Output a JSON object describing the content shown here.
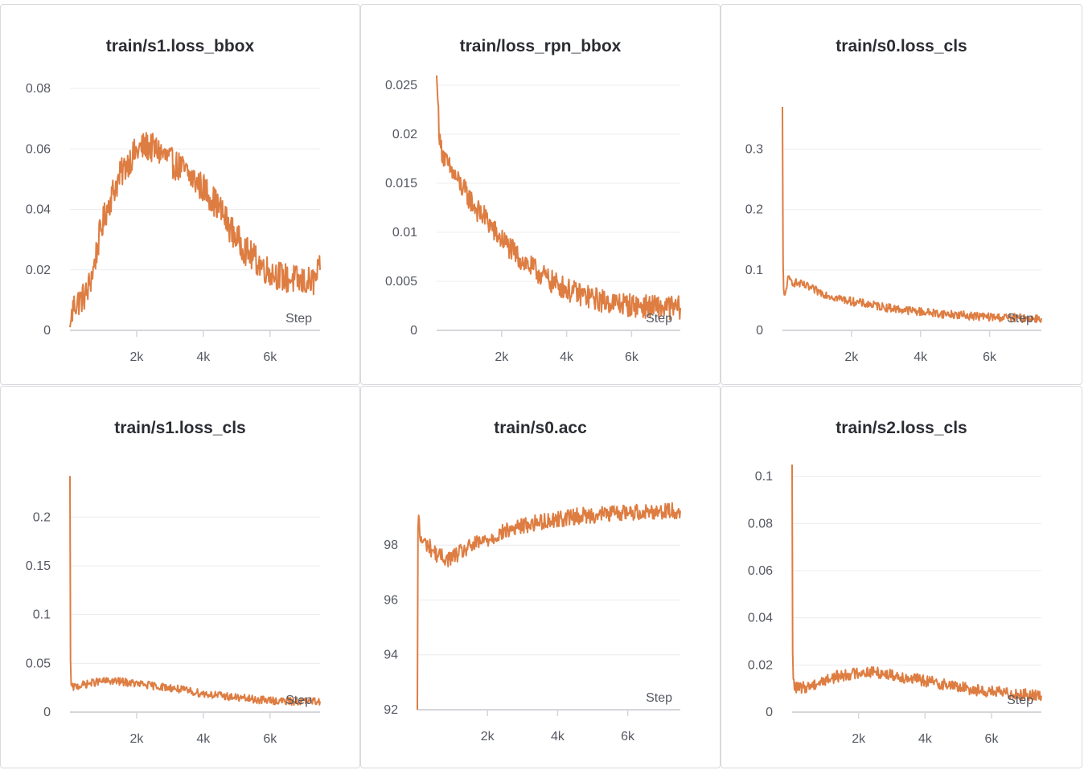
{
  "colors": {
    "series": "#de7d42",
    "grid": "#ececef",
    "text": "#555861"
  },
  "x_axis_label": "Step",
  "chart_data": [
    {
      "type": "line",
      "title": "train/s1.loss_bbox",
      "xlabel": "Step",
      "xlim": [
        0,
        7500
      ],
      "ylim": [
        0,
        0.08
      ],
      "yticks": [
        0,
        0.02,
        0.04,
        0.06,
        0.08
      ],
      "yticklabels": [
        "0",
        "0.02",
        "0.04",
        "0.06",
        "0.08"
      ],
      "xticks": [
        2000,
        4000,
        6000
      ],
      "xticklabels": [
        "2k",
        "4k",
        "6k"
      ],
      "series": [
        {
          "x": [
            0,
            100,
            300,
            500,
            700,
            900,
            1100,
            1300,
            1500,
            1700,
            1900,
            2100,
            2300,
            2500,
            2700,
            2900,
            3100,
            3300,
            3500,
            3700,
            3900,
            4100,
            4300,
            4500,
            4700,
            4900,
            5100,
            5300,
            5500,
            5700,
            5900,
            6100,
            6300,
            6500,
            6700,
            6900,
            7100,
            7300,
            7500
          ],
          "y": [
            0.001,
            0.008,
            0.01,
            0.012,
            0.02,
            0.032,
            0.04,
            0.046,
            0.051,
            0.055,
            0.058,
            0.06,
            0.061,
            0.06,
            0.059,
            0.057,
            0.055,
            0.054,
            0.052,
            0.05,
            0.048,
            0.046,
            0.043,
            0.04,
            0.036,
            0.032,
            0.029,
            0.026,
            0.024,
            0.022,
            0.02,
            0.019,
            0.018,
            0.017,
            0.017,
            0.016,
            0.016,
            0.016,
            0.02
          ],
          "noise": 0.005
        }
      ]
    },
    {
      "type": "line",
      "title": "train/loss_rpn_bbox",
      "xlabel": "Step",
      "xlim": [
        0,
        7500
      ],
      "ylim": [
        0,
        0.025
      ],
      "yticks": [
        0,
        0.005,
        0.01,
        0.015,
        0.02,
        0.025
      ],
      "yticklabels": [
        "0",
        "0.005",
        "0.01",
        "0.015",
        "0.02",
        "0.025"
      ],
      "xticks": [
        2000,
        4000,
        6000
      ],
      "xticklabels": [
        "2k",
        "4k",
        "6k"
      ],
      "series": [
        {
          "x": [
            0,
            100,
            300,
            500,
            700,
            900,
            1100,
            1300,
            1500,
            1700,
            1900,
            2100,
            2300,
            2500,
            2700,
            2900,
            3100,
            3300,
            3500,
            3700,
            3900,
            4100,
            4300,
            4500,
            4700,
            4900,
            5100,
            5300,
            5500,
            5700,
            5900,
            6100,
            6300,
            6500,
            6700,
            6900,
            7100,
            7300,
            7500
          ],
          "y": [
            0.026,
            0.019,
            0.017,
            0.016,
            0.015,
            0.014,
            0.013,
            0.012,
            0.0115,
            0.0105,
            0.0095,
            0.009,
            0.0082,
            0.0075,
            0.007,
            0.0064,
            0.006,
            0.0055,
            0.005,
            0.0047,
            0.0044,
            0.004,
            0.0038,
            0.0036,
            0.0034,
            0.0032,
            0.003,
            0.0029,
            0.0028,
            0.0027,
            0.0026,
            0.0025,
            0.0025,
            0.0024,
            0.0024,
            0.0023,
            0.0023,
            0.0023,
            0.0023
          ],
          "noise": 0.0012
        }
      ]
    },
    {
      "type": "line",
      "title": "train/s0.loss_cls",
      "xlabel": "Step",
      "xlim": [
        0,
        7500
      ],
      "ylim": [
        0,
        0.35
      ],
      "yticks": [
        0,
        0.1,
        0.2,
        0.3
      ],
      "yticklabels": [
        "0",
        "0.1",
        "0.2",
        "0.3"
      ],
      "xticks": [
        2000,
        4000,
        6000
      ],
      "xticklabels": [
        "2k",
        "4k",
        "6k"
      ],
      "series": [
        {
          "x": [
            0,
            20,
            60,
            150,
            300,
            600,
            1000,
            1500,
            2000,
            2500,
            3000,
            3500,
            4000,
            4500,
            5000,
            5500,
            6000,
            6500,
            7000,
            7500
          ],
          "y": [
            0.37,
            0.08,
            0.05,
            0.085,
            0.08,
            0.075,
            0.065,
            0.055,
            0.048,
            0.043,
            0.038,
            0.034,
            0.031,
            0.028,
            0.026,
            0.024,
            0.022,
            0.021,
            0.02,
            0.02
          ],
          "noise": 0.007
        }
      ]
    },
    {
      "type": "line",
      "title": "train/s1.loss_cls",
      "xlabel": "Step",
      "xlim": [
        0,
        7500
      ],
      "ylim": [
        0,
        0.22
      ],
      "yticks": [
        0,
        0.05,
        0.1,
        0.15,
        0.2
      ],
      "yticklabels": [
        "0",
        "0.05",
        "0.1",
        "0.15",
        "0.2"
      ],
      "xticks": [
        2000,
        4000,
        6000
      ],
      "xticklabels": [
        "2k",
        "4k",
        "6k"
      ],
      "series": [
        {
          "x": [
            0,
            20,
            60,
            150,
            400,
            800,
            1200,
            1600,
            2000,
            2500,
            3000,
            3500,
            4000,
            4500,
            5000,
            5500,
            6000,
            6500,
            7000,
            7500
          ],
          "y": [
            0.245,
            0.03,
            0.025,
            0.026,
            0.028,
            0.031,
            0.032,
            0.031,
            0.029,
            0.027,
            0.025,
            0.022,
            0.019,
            0.017,
            0.015,
            0.013,
            0.012,
            0.011,
            0.011,
            0.011
          ],
          "noise": 0.004
        }
      ]
    },
    {
      "type": "line",
      "title": "train/s0.acc",
      "xlabel": "Step",
      "xlim": [
        0,
        7500
      ],
      "ylim": [
        92,
        99.5
      ],
      "yticks": [
        92,
        94,
        96,
        98
      ],
      "yticklabels": [
        "92",
        "94",
        "96",
        "98"
      ],
      "xticks": [
        2000,
        4000,
        6000
      ],
      "xticklabels": [
        "2k",
        "4k",
        "6k"
      ],
      "series": [
        {
          "x": [
            0,
            20,
            80,
            300,
            600,
            900,
            1200,
            1600,
            2000,
            2500,
            3000,
            3500,
            4000,
            4500,
            5000,
            5500,
            6000,
            6500,
            7000,
            7500
          ],
          "y": [
            92.0,
            99.4,
            98.2,
            98.0,
            97.6,
            97.5,
            97.7,
            98.0,
            98.2,
            98.5,
            98.7,
            98.85,
            98.95,
            99.05,
            99.1,
            99.15,
            99.2,
            99.22,
            99.25,
            99.25
          ],
          "noise": 0.3
        }
      ]
    },
    {
      "type": "line",
      "title": "train/s2.loss_cls",
      "xlabel": "Step",
      "xlim": [
        0,
        7500
      ],
      "ylim": [
        0,
        0.105
      ],
      "yticks": [
        0,
        0.02,
        0.04,
        0.06,
        0.08,
        0.1
      ],
      "yticklabels": [
        "0",
        "0.02",
        "0.04",
        "0.06",
        "0.08",
        "0.1"
      ],
      "xticks": [
        2000,
        4000,
        6000
      ],
      "xticklabels": [
        "2k",
        "4k",
        "6k"
      ],
      "series": [
        {
          "x": [
            0,
            20,
            60,
            200,
            500,
            900,
            1300,
            1700,
            2100,
            2500,
            2900,
            3300,
            3700,
            4100,
            4500,
            4900,
            5300,
            5700,
            6100,
            6500,
            6900,
            7300,
            7500
          ],
          "y": [
            0.105,
            0.016,
            0.011,
            0.01,
            0.011,
            0.013,
            0.015,
            0.016,
            0.017,
            0.017,
            0.016,
            0.015,
            0.014,
            0.013,
            0.012,
            0.011,
            0.01,
            0.009,
            0.0085,
            0.008,
            0.0075,
            0.007,
            0.007
          ],
          "noise": 0.0025
        }
      ]
    }
  ]
}
